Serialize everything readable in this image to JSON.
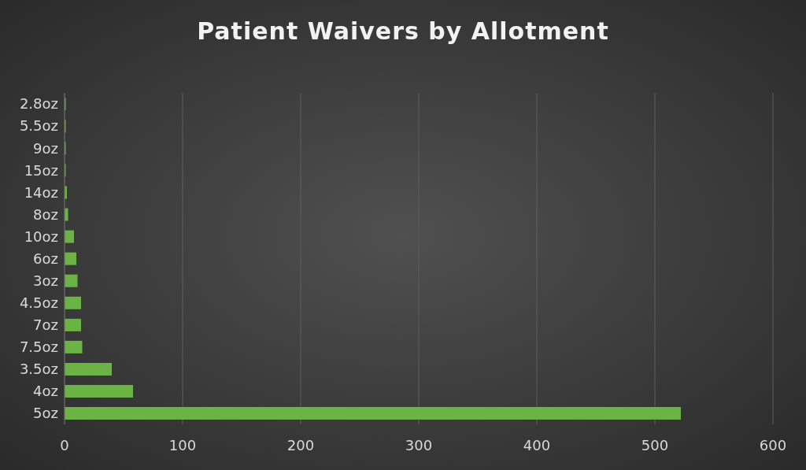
{
  "chart_data": {
    "type": "bar",
    "orientation": "horizontal",
    "title": "Patient Waivers by Allotment",
    "categories": [
      "2.8oz",
      "5.5oz",
      "9oz",
      "15oz",
      "14oz",
      "8oz",
      "10oz",
      "6oz",
      "3oz",
      "4.5oz",
      "7oz",
      "7.5oz",
      "3.5oz",
      "4oz",
      "5oz"
    ],
    "values": [
      1,
      1,
      1,
      1,
      2,
      3,
      8,
      10,
      11,
      14,
      14,
      15,
      40,
      58,
      522
    ],
    "color": "#6ab344",
    "xlim": [
      0,
      600
    ],
    "xticks": [
      0,
      100,
      200,
      300,
      400,
      500,
      600
    ],
    "grid": "x"
  }
}
